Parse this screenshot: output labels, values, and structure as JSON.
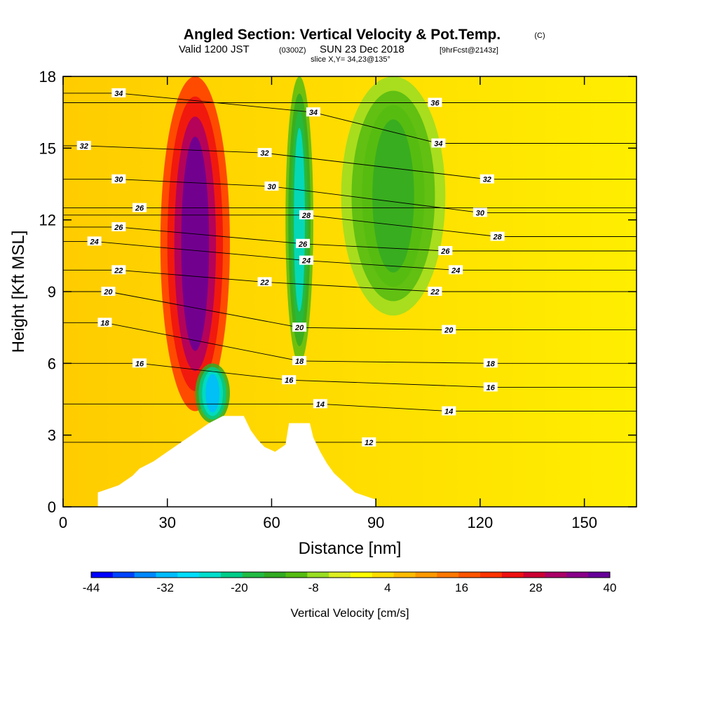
{
  "titles": {
    "main": "Angled Section: Vertical Velocity & Pot.Temp.",
    "main_suffix": "(C)",
    "valid_prefix": "Valid 1200 JST",
    "valid_z": "(0300Z)",
    "valid_date": "SUN 23 Dec 2018",
    "valid_fcst": "[9hrFcst@2143z]",
    "slice": "slice X,Y= 34,23@135°"
  },
  "chart_data": {
    "type": "heatmap",
    "xlabel": "Distance [nm]",
    "ylabel": "Height [Kft MSL]",
    "xlim": [
      0,
      165
    ],
    "ylim": [
      0,
      18
    ],
    "x_ticks": [
      "0",
      "30",
      "60",
      "90",
      "120",
      "150"
    ],
    "y_ticks": [
      "0",
      "3",
      "6",
      "9",
      "12",
      "15",
      "18"
    ],
    "colorbar": {
      "title": "Vertical Velocity [cm/s]",
      "range": [
        -44,
        40
      ],
      "tick_labels": [
        "-44",
        "-32",
        "-20",
        "-8",
        "4",
        "16",
        "28",
        "40"
      ],
      "colors": [
        "#0000ff",
        "#0044ff",
        "#0088ff",
        "#00bbff",
        "#00ddff",
        "#00ddcc",
        "#00cc88",
        "#22bb44",
        "#33aa22",
        "#55bb11",
        "#99dd22",
        "#ddee22",
        "#ffff00",
        "#ffdd00",
        "#ffbb00",
        "#ff9900",
        "#ff7700",
        "#ff5500",
        "#ff3300",
        "#ee1111",
        "#cc0033",
        "#aa0066",
        "#880088",
        "#660099"
      ]
    },
    "terrain_nm_kft": [
      [
        10,
        0.6
      ],
      [
        16,
        0.9
      ],
      [
        20,
        1.3
      ],
      [
        22,
        1.6
      ],
      [
        26,
        1.9
      ],
      [
        30,
        2.3
      ],
      [
        34,
        2.7
      ],
      [
        38,
        3.1
      ],
      [
        42,
        3.5
      ],
      [
        46,
        3.8
      ],
      [
        52,
        3.8
      ],
      [
        54,
        3.2
      ],
      [
        56,
        2.8
      ],
      [
        58,
        2.5
      ],
      [
        61,
        2.3
      ],
      [
        64,
        2.6
      ],
      [
        65,
        3.5
      ],
      [
        71,
        3.5
      ],
      [
        72,
        2.9
      ],
      [
        74,
        2.3
      ],
      [
        76,
        1.8
      ],
      [
        78,
        1.4
      ],
      [
        81,
        1.0
      ],
      [
        84,
        0.6
      ],
      [
        90,
        0.3
      ],
      [
        90,
        0
      ]
    ],
    "vertical_velocity_features": [
      {
        "type": "updraft",
        "x_range": [
          28,
          48
        ],
        "y_range": [
          4,
          18
        ],
        "peak": 40
      },
      {
        "type": "downdraft",
        "x_range": [
          64,
          72
        ],
        "y_range": [
          6,
          18
        ],
        "peak": -24
      },
      {
        "type": "downdraft",
        "x_range": [
          38,
          48
        ],
        "y_range": [
          3.5,
          6
        ],
        "peak": -32
      },
      {
        "type": "downdraft",
        "x_range": [
          80,
          110
        ],
        "y_range": [
          8,
          18
        ],
        "peak": -14
      }
    ],
    "potential_temperature_contours": [
      {
        "value": "12",
        "labels": [
          [
            88,
            2.7
          ]
        ]
      },
      {
        "value": "14",
        "labels": [
          [
            74,
            4.3
          ],
          [
            111,
            4.0
          ]
        ]
      },
      {
        "value": "16",
        "labels": [
          [
            22,
            6.0
          ],
          [
            65,
            5.3
          ],
          [
            123,
            5.0
          ]
        ]
      },
      {
        "value": "18",
        "labels": [
          [
            12,
            7.7
          ],
          [
            68,
            6.1
          ],
          [
            123,
            6.0
          ]
        ]
      },
      {
        "value": "20",
        "labels": [
          [
            13,
            9.0
          ],
          [
            68,
            7.5
          ],
          [
            111,
            7.4
          ]
        ]
      },
      {
        "value": "22",
        "labels": [
          [
            16,
            9.9
          ],
          [
            58,
            9.4
          ],
          [
            107,
            9.0
          ]
        ]
      },
      {
        "value": "24",
        "labels": [
          [
            9,
            11.1
          ],
          [
            70,
            10.3
          ],
          [
            113,
            9.9
          ]
        ]
      },
      {
        "value": "26",
        "labels": [
          [
            16,
            11.7
          ],
          [
            69,
            11.0
          ],
          [
            110,
            10.7
          ]
        ]
      },
      {
        "value": "26",
        "labels": [
          [
            22,
            12.5
          ]
        ]
      },
      {
        "value": "28",
        "labels": [
          [
            70,
            12.2
          ],
          [
            125,
            11.3
          ]
        ]
      },
      {
        "value": "30",
        "labels": [
          [
            16,
            13.7
          ],
          [
            60,
            13.4
          ],
          [
            120,
            12.3
          ]
        ]
      },
      {
        "value": "32",
        "labels": [
          [
            6,
            15.1
          ],
          [
            58,
            14.8
          ],
          [
            122,
            13.7
          ]
        ]
      },
      {
        "value": "34",
        "labels": [
          [
            16,
            17.3
          ],
          [
            72,
            16.5
          ],
          [
            108,
            15.2
          ]
        ]
      },
      {
        "value": "36",
        "labels": [
          [
            107,
            16.9
          ]
        ]
      }
    ]
  }
}
